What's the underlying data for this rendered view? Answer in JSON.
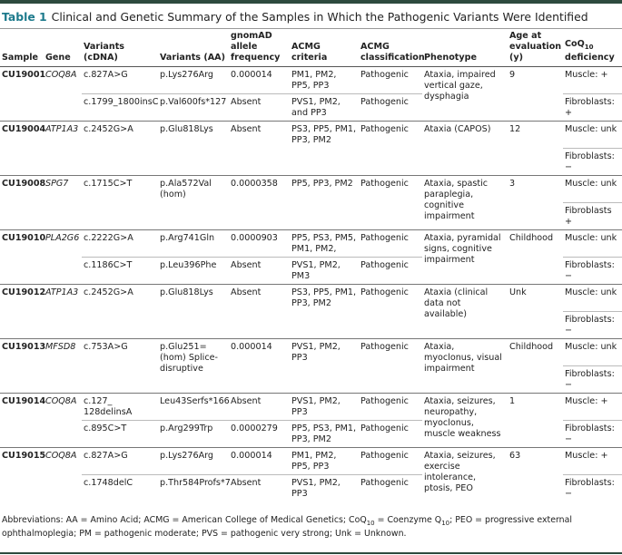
{
  "title": {
    "label": "Table 1",
    "text": "Clinical and Genetic Summary of the Samples in Which the Pathogenic Variants Were Identified"
  },
  "table": {
    "headers": [
      [
        "Sample"
      ],
      [
        "Gene"
      ],
      [
        "Variants (cDNA)"
      ],
      [
        "Variants (AA)"
      ],
      [
        "gnomAD allele frequency"
      ],
      [
        "ACMG criteria"
      ],
      [
        "ACMG classification"
      ],
      [
        "Phenotype"
      ],
      [
        "Age at evaluation (y)"
      ],
      [
        "CoQ",
        "10",
        " deficiency"
      ]
    ],
    "groups": [
      {
        "sample": "CU19001",
        "gene": "COQ8A",
        "variants": [
          {
            "cdna": "c.827A>G",
            "aa": "p.Lys276Arg",
            "freq": 1.4e-05,
            "criteria": "PM1, PM2, PP5, PP3",
            "class": "Pathogenic"
          },
          {
            "cdna": "c.1799_1800insC",
            "aa": "p.Val600fs*127",
            "freq": "Absent",
            "criteria": "PVS1, PM2, and PP3",
            "class": "Pathogenic"
          }
        ],
        "phenotype": "Ataxia, impaired vertical gaze, dysphagia",
        "age": 9,
        "coq": [
          "Muscle: +",
          "Fibroblasts: +"
        ]
      },
      {
        "sample": "CU19004",
        "gene": "ATP1A3",
        "variants": [
          {
            "cdna": "c.2452G>A",
            "aa": "p.Glu818Lys",
            "freq": "Absent",
            "criteria": "PS3, PP5, PM1, PP3, PM2",
            "class": "Pathogenic"
          }
        ],
        "phenotype": "Ataxia (CAPOS)",
        "age": 12,
        "coq": [
          "Muscle: unk",
          "Fibroblasts: −"
        ]
      },
      {
        "sample": "CU19008",
        "gene": "SPG7",
        "variants": [
          {
            "cdna": "c.1715C>T",
            "aa": "p.Ala572Val (hom)",
            "freq": 3.58e-05,
            "criteria": "PP5, PP3, PM2",
            "class": "Pathogenic"
          }
        ],
        "phenotype": "Ataxia, spastic paraplegia, cognitive impairment",
        "age": 3,
        "coq": [
          "Muscle: unk",
          "Fibroblasts +"
        ]
      },
      {
        "sample": "CU19010",
        "gene": "PLA2G6",
        "variants": [
          {
            "cdna": "c.2222G>A",
            "aa": "p.Arg741Gln",
            "freq": 9.03e-05,
            "criteria": "PP5, PS3, PM5, PM1, PM2,",
            "class": "Pathogenic"
          },
          {
            "cdna": "c.1186C>T",
            "aa": "p.Leu396Phe",
            "freq": "Absent",
            "criteria": "PVS1, PM2, PM3",
            "class": "Pathogenic"
          }
        ],
        "phenotype": "Ataxia, pyramidal signs, cognitive impairment",
        "age": "Childhood",
        "coq": [
          "Muscle: unk",
          "Fibroblasts: −"
        ]
      },
      {
        "sample": "CU19012",
        "gene": "ATP1A3",
        "variants": [
          {
            "cdna": "c.2452G>A",
            "aa": "p.Glu818Lys",
            "freq": "Absent",
            "criteria": "PS3, PP5, PM1, PP3, PM2",
            "class": "Pathogenic"
          }
        ],
        "phenotype": "Ataxia (clinical data not available)",
        "age": "Unk",
        "coq": [
          "Muscle: unk",
          "Fibroblasts: −"
        ]
      },
      {
        "sample": "CU19013",
        "gene": "MFSD8",
        "variants": [
          {
            "cdna": "c.753A>G",
            "aa": "p.Glu251= (hom) Splice-disruptive",
            "freq": 1.4e-05,
            "criteria": "PVS1, PM2, PP3",
            "class": "Pathogenic"
          }
        ],
        "phenotype": "Ataxia, myoclonus, visual impairment",
        "age": "Childhood",
        "coq": [
          "Muscle: unk",
          "Fibroblasts: −"
        ]
      },
      {
        "sample": "CU19014",
        "gene": "COQ8A",
        "variants": [
          {
            "cdna": "c.127_ 128delinsA",
            "aa": "Leu43Serfs*166",
            "freq": "Absent",
            "criteria": "PVS1, PM2, PP3",
            "class": "Pathogenic"
          },
          {
            "cdna": "c.895C>T",
            "aa": "p.Arg299Trp",
            "freq": 2.79e-05,
            "criteria": "PP5, PS3, PM1, PP3, PM2",
            "class": "Pathogenic"
          }
        ],
        "phenotype": "Ataxia, seizures, neuropathy, myoclonus, muscle weakness",
        "age": 1,
        "coq": [
          "Muscle: +",
          "Fibroblasts: −"
        ]
      },
      {
        "sample": "CU19015",
        "gene": "COQ8A",
        "variants": [
          {
            "cdna": "c.827A>G",
            "aa": "p.Lys276Arg",
            "freq": 1.4e-05,
            "criteria": "PM1, PM2, PP5, PP3",
            "class": "Pathogenic"
          },
          {
            "cdna": "c.1748delC",
            "aa": "p.Thr584Profs*7",
            "freq": "Absent",
            "criteria": "PVS1, PM2, PP3",
            "class": "Pathogenic"
          }
        ],
        "phenotype": "Ataxia, seizures, exercise intolerance, ptosis, PEO",
        "age": 63,
        "coq": [
          "Muscle: +",
          "Fibroblasts: −"
        ]
      }
    ]
  },
  "footnote": [
    "Abbreviations: AA = Amino Acid; ACMG = American College of Medical Genetics; CoQ",
    "10",
    " = Coenzyme Q",
    "10",
    "; PEO = progressive external ophthalmoplegia; PM = pathogenic moderate; PVS = pathogenic very strong; Unk = Unknown."
  ]
}
